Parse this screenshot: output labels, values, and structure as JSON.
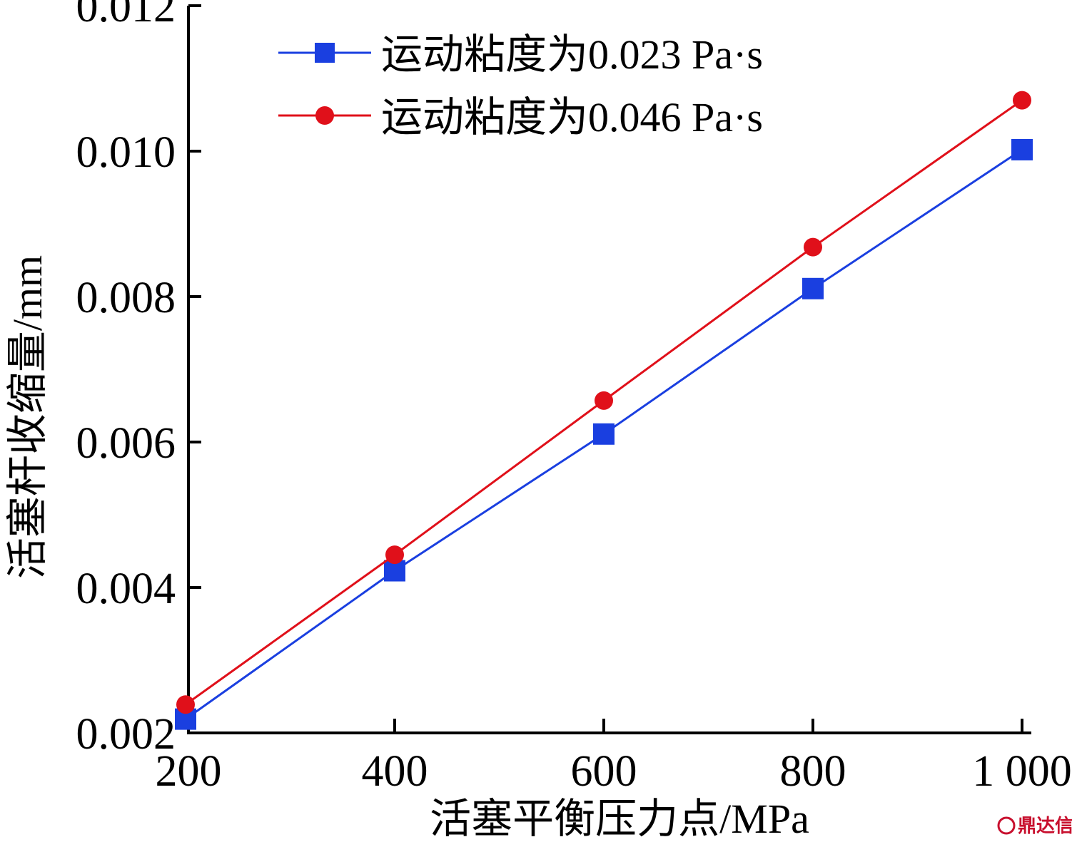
{
  "chart_data": {
    "type": "line",
    "xlabel": "活塞平衡压力点/MPa",
    "ylabel": "活塞杆收缩量/mm",
    "xlim": [
      190,
      1010
    ],
    "ylim": [
      0.002,
      0.012
    ],
    "xticks": [
      200,
      400,
      600,
      800,
      1000
    ],
    "xtick_labels": [
      "200",
      "400",
      "600",
      "800",
      "1 000"
    ],
    "yticks": [
      0.002,
      0.004,
      0.006,
      0.008,
      0.01,
      0.012
    ],
    "ytick_labels": [
      "0.002",
      "0.004",
      "0.006",
      "0.008",
      "0.010",
      "0.012"
    ],
    "grid": false,
    "legend_position": "top-left",
    "series": [
      {
        "name": "运动粘度为0.023 Pa·s",
        "color": "#1a3fe0",
        "marker": "square",
        "x": [
          200,
          400,
          600,
          800,
          1000
        ],
        "y": [
          0.00219,
          0.00423,
          0.00611,
          0.00811,
          0.01002
        ]
      },
      {
        "name": "运动粘度为0.046 Pa·s",
        "color": "#e0101a",
        "marker": "circle",
        "x": [
          200,
          400,
          600,
          800,
          1000
        ],
        "y": [
          0.00239,
          0.00445,
          0.00657,
          0.00868,
          0.0107
        ]
      }
    ]
  },
  "watermark": {
    "text": "鼎达信",
    "color": "#c8102e"
  }
}
